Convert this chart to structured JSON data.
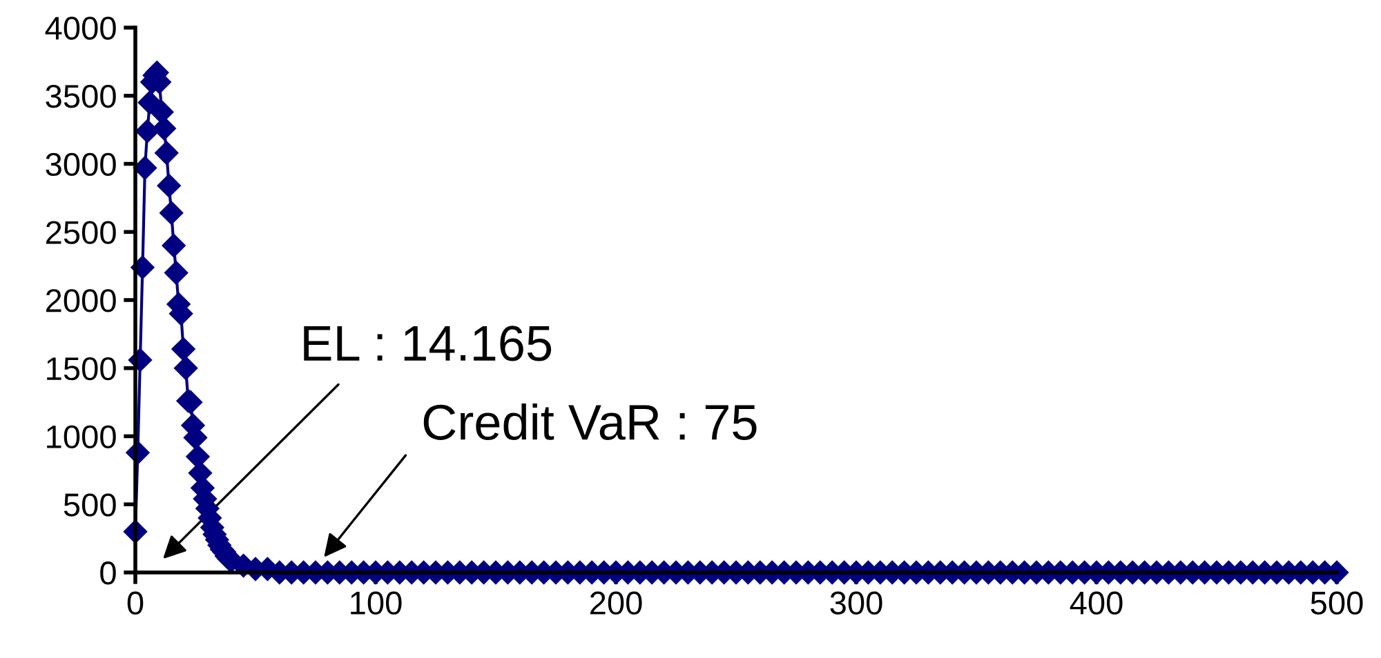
{
  "chart_data": {
    "type": "line",
    "marker": "diamond",
    "line_style": "solid",
    "grid": false,
    "legend": false,
    "xlim": [
      0,
      500
    ],
    "xticks": [
      0,
      100,
      200,
      300,
      400,
      500
    ],
    "ylim": [
      0,
      4000
    ],
    "yticks": [
      0,
      500,
      1000,
      1500,
      2000,
      2500,
      3000,
      3500,
      4000
    ],
    "series": [
      {
        "color": "#000080",
        "x": [
          0,
          1,
          2,
          3,
          4,
          5,
          6,
          7,
          8,
          9,
          10,
          11,
          12,
          13,
          14,
          15,
          16,
          17,
          18,
          19,
          20,
          21,
          22,
          23,
          24,
          25,
          26,
          27,
          28,
          29,
          30,
          31,
          32,
          33,
          34,
          35,
          36,
          37,
          38,
          39,
          40,
          45,
          50,
          55,
          60,
          65,
          70,
          75,
          80,
          85,
          90,
          95,
          100,
          105,
          110,
          115,
          120,
          125,
          130,
          135,
          140,
          145,
          150,
          155,
          160,
          165,
          170,
          175,
          180,
          185,
          190,
          195,
          200,
          205,
          210,
          215,
          220,
          225,
          230,
          235,
          240,
          245,
          250,
          255,
          260,
          265,
          270,
          275,
          280,
          285,
          290,
          295,
          300,
          305,
          310,
          315,
          320,
          325,
          330,
          335,
          340,
          345,
          350,
          355,
          360,
          365,
          370,
          375,
          380,
          385,
          390,
          395,
          400,
          405,
          410,
          415,
          420,
          425,
          430,
          435,
          440,
          445,
          450,
          455,
          460,
          465,
          470,
          475,
          480,
          485,
          490,
          495,
          500
        ],
        "values": [
          300,
          880,
          1560,
          2240,
          2970,
          3240,
          3450,
          3600,
          3650,
          3670,
          3600,
          3380,
          3260,
          3080,
          2840,
          2640,
          2400,
          2200,
          1970,
          1900,
          1640,
          1500,
          1260,
          1250,
          1080,
          990,
          850,
          730,
          620,
          540,
          470,
          400,
          330,
          280,
          240,
          200,
          170,
          150,
          120,
          100,
          90,
          50,
          25,
          25,
          0,
          0,
          0,
          0,
          0,
          0,
          0,
          0,
          0,
          0,
          0,
          0,
          0,
          0,
          0,
          0,
          0,
          0,
          0,
          0,
          0,
          0,
          0,
          0,
          0,
          0,
          0,
          0,
          0,
          0,
          0,
          0,
          0,
          0,
          0,
          0,
          0,
          0,
          0,
          0,
          0,
          0,
          0,
          0,
          0,
          0,
          0,
          0,
          0,
          0,
          0,
          0,
          0,
          0,
          0,
          0,
          0,
          0,
          0,
          0,
          0,
          0,
          0,
          0,
          0,
          0,
          0,
          0,
          0,
          0,
          0,
          0,
          0,
          0,
          0,
          0,
          0,
          0,
          0,
          0,
          0,
          0,
          0,
          0,
          0,
          0,
          0,
          0,
          0
        ]
      }
    ],
    "annotations": [
      "EL : 14.165",
      "Credit VaR : 75"
    ]
  }
}
